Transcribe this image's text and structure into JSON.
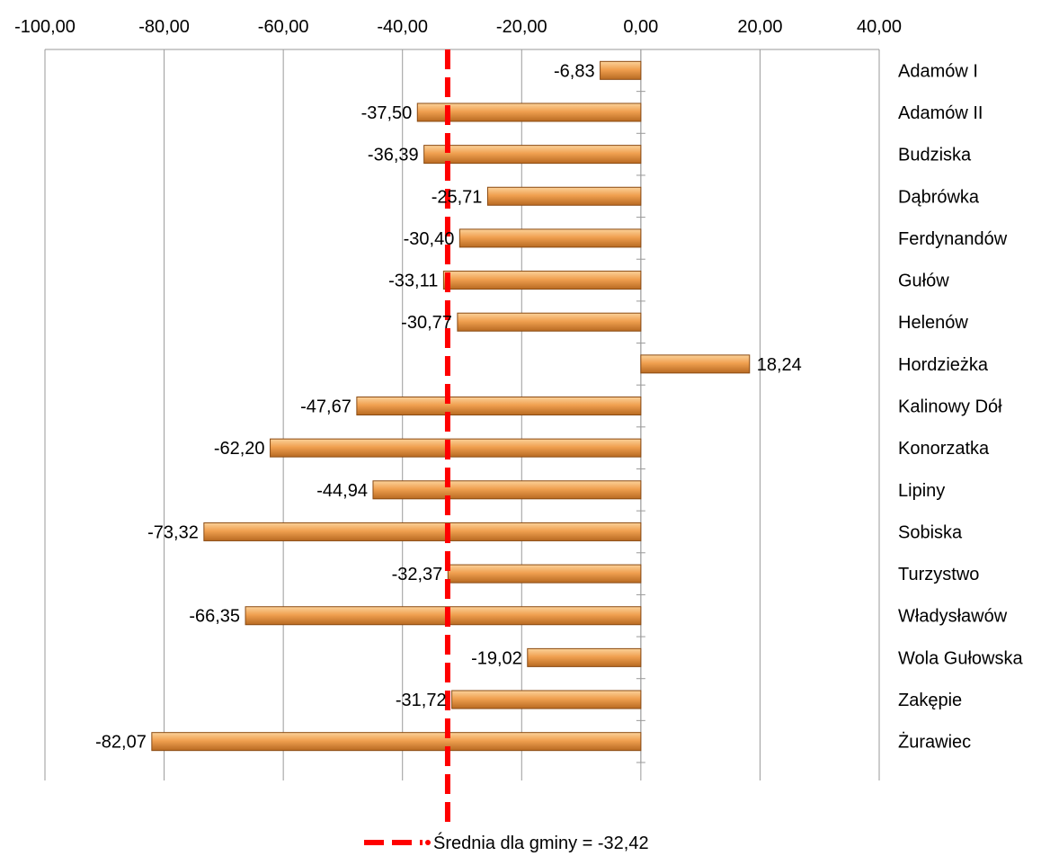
{
  "chart_data": {
    "type": "bar",
    "orientation": "horizontal",
    "categories": [
      "Adamów I",
      "Adamów II",
      "Budziska",
      "Dąbrówka",
      "Ferdynandów",
      "Gułów",
      "Helenów",
      "Hordzieżka",
      "Kalinowy Dół",
      "Konorzatka",
      "Lipiny",
      "Sobiska",
      "Turzystwo",
      "Władysławów",
      "Wola Gułowska",
      "Zakępie",
      "Żurawiec"
    ],
    "values": [
      -6.83,
      -37.5,
      -36.39,
      -25.71,
      -30.4,
      -33.11,
      -30.77,
      18.24,
      -47.67,
      -62.2,
      -44.94,
      -73.32,
      -32.37,
      -66.35,
      -19.02,
      -31.72,
      -82.07
    ],
    "value_labels": [
      "-6,83",
      "-37,50",
      "-36,39",
      "-25,71",
      "-30,40",
      "-33,11",
      "-30,77",
      "18,24",
      "-47,67",
      "-62,20",
      "-44,94",
      "-73,32",
      "-32,37",
      "-66,35",
      "-19,02",
      "-31,72",
      "-82,07"
    ],
    "xlim": [
      -100,
      40
    ],
    "x_ticks": [
      -100,
      -80,
      -60,
      -40,
      -20,
      0,
      20,
      40
    ],
    "x_tick_labels": [
      "-100,00",
      "-80,00",
      "-60,00",
      "-40,00",
      "-20,00",
      "0,00",
      "20,00",
      "40,00"
    ],
    "x_axis_position": "top",
    "category_labels_position": "right",
    "grid": true,
    "bar_color": "#f0a050",
    "reference_line": {
      "value": -32.42,
      "color": "#ff0000",
      "style": "dashed",
      "label": "Średnia dla gminy = -32,42"
    },
    "legend": {
      "position": "bottom"
    }
  }
}
